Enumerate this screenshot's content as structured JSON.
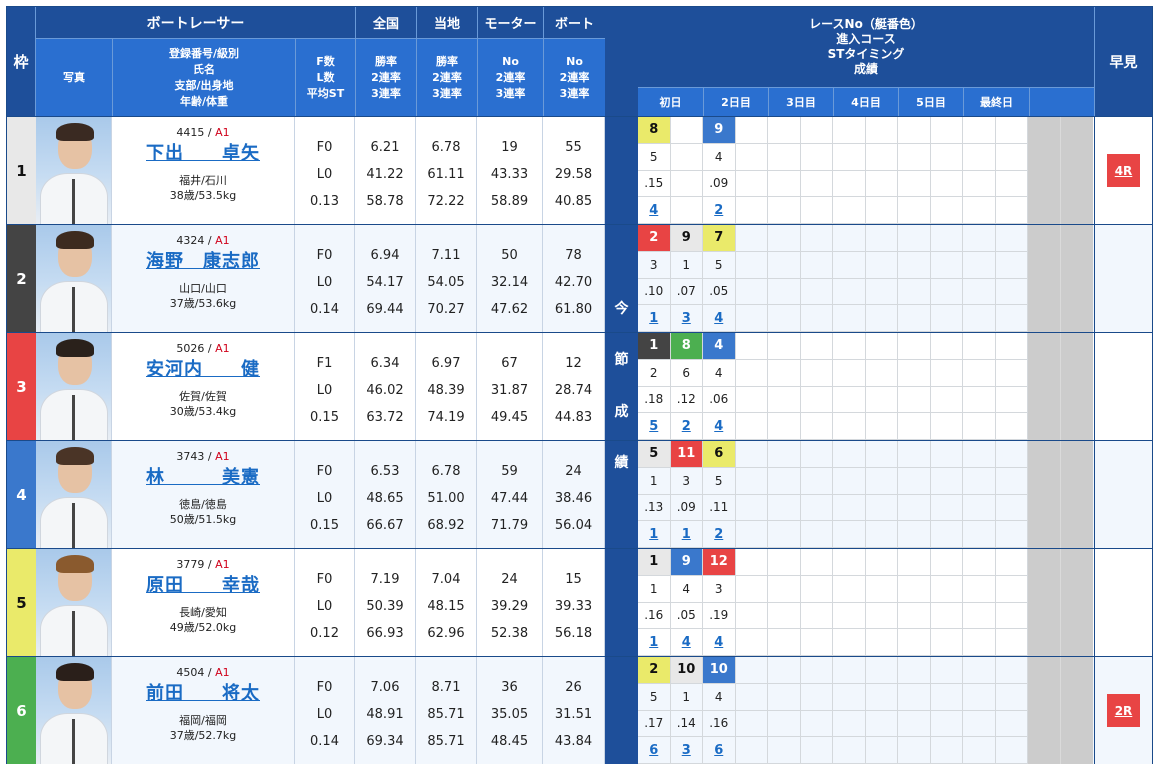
{
  "header": {
    "waku": "枠",
    "boat_racer": "ボートレーサー",
    "photo": "写真",
    "info": [
      "登録番号/級別",
      "氏名",
      "支部/出身地",
      "年齢/体重"
    ],
    "fl": [
      "F数",
      "L数",
      "平均ST"
    ],
    "groups": [
      {
        "label": "全国",
        "sub": [
          "勝率",
          "2連率",
          "3連率"
        ]
      },
      {
        "label": "当地",
        "sub": [
          "勝率",
          "2連率",
          "3連率"
        ]
      },
      {
        "label": "モーター",
        "sub": [
          "No",
          "2連率",
          "3連率"
        ]
      },
      {
        "label": "ボート",
        "sub": [
          "No",
          "2連率",
          "3連率"
        ]
      }
    ],
    "race_info": [
      "レースNo（艇番色）",
      "進入コース",
      "STタイミング",
      "成績"
    ],
    "days": [
      "初日",
      "2日目",
      "3日目",
      "4日目",
      "5日目",
      "最終日",
      ""
    ],
    "hayami": "早見",
    "konsetsu": [
      "今",
      "節",
      "成",
      "績"
    ]
  },
  "colors": {
    "waku": [
      "#e8e8e8",
      "#444444",
      "#e84444",
      "#3a78cc",
      "#eaea6a",
      "#4caf50"
    ],
    "waku_text": [
      "#111111",
      "#ffffff",
      "#ffffff",
      "#ffffff",
      "#111111",
      "#ffffff"
    ],
    "header_dark": "#1e4f9a",
    "header_light": "#2a6fd0",
    "link": "#1a6bc4",
    "class": "#d0021b"
  },
  "racers": [
    {
      "waku": "1",
      "reg": "4415",
      "class": "A1",
      "name": "下出　　卓矢",
      "home": "福井/石川",
      "age_weight": "38歳/53.5kg",
      "f": "F0",
      "l": "L0",
      "avg_st": "0.13",
      "national": [
        "6.21",
        "41.22",
        "58.78"
      ],
      "local": [
        "6.78",
        "61.11",
        "72.22"
      ],
      "motor": [
        "19",
        "43.33",
        "58.89"
      ],
      "boat": [
        "55",
        "29.58",
        "40.85"
      ],
      "races": [
        {
          "race": "8",
          "boat": 5,
          "course": "5",
          "st": ".15",
          "result": "4"
        },
        null,
        {
          "race": "9",
          "boat": 4,
          "course": "4",
          "st": ".09",
          "result": "2"
        }
      ],
      "hayami": "4R"
    },
    {
      "waku": "2",
      "reg": "4324",
      "class": "A1",
      "name": "海野　康志郎",
      "home": "山口/山口",
      "age_weight": "37歳/53.6kg",
      "f": "F0",
      "l": "L0",
      "avg_st": "0.14",
      "national": [
        "6.94",
        "54.17",
        "69.44"
      ],
      "local": [
        "7.11",
        "54.05",
        "70.27"
      ],
      "motor": [
        "50",
        "32.14",
        "47.62"
      ],
      "boat": [
        "78",
        "42.70",
        "61.80"
      ],
      "races": [
        {
          "race": "2",
          "boat": 3,
          "course": "3",
          "st": ".10",
          "result": "1"
        },
        {
          "race": "9",
          "boat": 1,
          "course": "1",
          "st": ".07",
          "result": "3"
        },
        {
          "race": "7",
          "boat": 5,
          "course": "5",
          "st": ".05",
          "result": "4"
        }
      ],
      "hayami": ""
    },
    {
      "waku": "3",
      "reg": "5026",
      "class": "A1",
      "name": "安河内　　健",
      "home": "佐賀/佐賀",
      "age_weight": "30歳/53.4kg",
      "f": "F1",
      "l": "L0",
      "avg_st": "0.15",
      "national": [
        "6.34",
        "46.02",
        "63.72"
      ],
      "local": [
        "6.97",
        "48.39",
        "74.19"
      ],
      "motor": [
        "67",
        "31.87",
        "49.45"
      ],
      "boat": [
        "12",
        "28.74",
        "44.83"
      ],
      "races": [
        {
          "race": "1",
          "boat": 2,
          "course": "2",
          "st": ".18",
          "result": "5"
        },
        {
          "race": "8",
          "boat": 6,
          "course": "6",
          "st": ".12",
          "result": "2"
        },
        {
          "race": "4",
          "boat": 4,
          "course": "4",
          "st": ".06",
          "result": "4"
        }
      ],
      "hayami": ""
    },
    {
      "waku": "4",
      "reg": "3743",
      "class": "A1",
      "name": "林　　　美憲",
      "home": "徳島/徳島",
      "age_weight": "50歳/51.5kg",
      "f": "F0",
      "l": "L0",
      "avg_st": "0.15",
      "national": [
        "6.53",
        "48.65",
        "66.67"
      ],
      "local": [
        "6.78",
        "51.00",
        "68.92"
      ],
      "motor": [
        "59",
        "47.44",
        "71.79"
      ],
      "boat": [
        "24",
        "38.46",
        "56.04"
      ],
      "races": [
        {
          "race": "5",
          "boat": 1,
          "course": "1",
          "st": ".13",
          "result": "1"
        },
        {
          "race": "11",
          "boat": 3,
          "course": "3",
          "st": ".09",
          "result": "1"
        },
        {
          "race": "6",
          "boat": 5,
          "course": "5",
          "st": ".11",
          "result": "2"
        }
      ],
      "hayami": ""
    },
    {
      "waku": "5",
      "reg": "3779",
      "class": "A1",
      "name": "原田　　幸哉",
      "home": "長崎/愛知",
      "age_weight": "49歳/52.0kg",
      "f": "F0",
      "l": "L0",
      "avg_st": "0.12",
      "national": [
        "7.19",
        "50.39",
        "66.93"
      ],
      "local": [
        "7.04",
        "48.15",
        "62.96"
      ],
      "motor": [
        "24",
        "39.29",
        "52.38"
      ],
      "boat": [
        "15",
        "39.33",
        "56.18"
      ],
      "races": [
        {
          "race": "1",
          "boat": 1,
          "course": "1",
          "st": ".16",
          "result": "1"
        },
        {
          "race": "9",
          "boat": 4,
          "course": "4",
          "st": ".05",
          "result": "4"
        },
        {
          "race": "12",
          "boat": 3,
          "course": "3",
          "st": ".19",
          "result": "4"
        }
      ],
      "hayami": ""
    },
    {
      "waku": "6",
      "reg": "4504",
      "class": "A1",
      "name": "前田　　将太",
      "home": "福岡/福岡",
      "age_weight": "37歳/52.7kg",
      "f": "F0",
      "l": "L0",
      "avg_st": "0.14",
      "national": [
        "7.06",
        "48.91",
        "69.34"
      ],
      "local": [
        "8.71",
        "85.71",
        "85.71"
      ],
      "motor": [
        "36",
        "35.05",
        "48.45"
      ],
      "boat": [
        "26",
        "31.51",
        "43.84"
      ],
      "races": [
        {
          "race": "2",
          "boat": 5,
          "course": "5",
          "st": ".17",
          "result": "6"
        },
        {
          "race": "10",
          "boat": 1,
          "course": "1",
          "st": ".14",
          "result": "3"
        },
        {
          "race": "10",
          "boat": 4,
          "course": "4",
          "st": ".16",
          "result": "6"
        }
      ],
      "hayami": "2R"
    }
  ]
}
